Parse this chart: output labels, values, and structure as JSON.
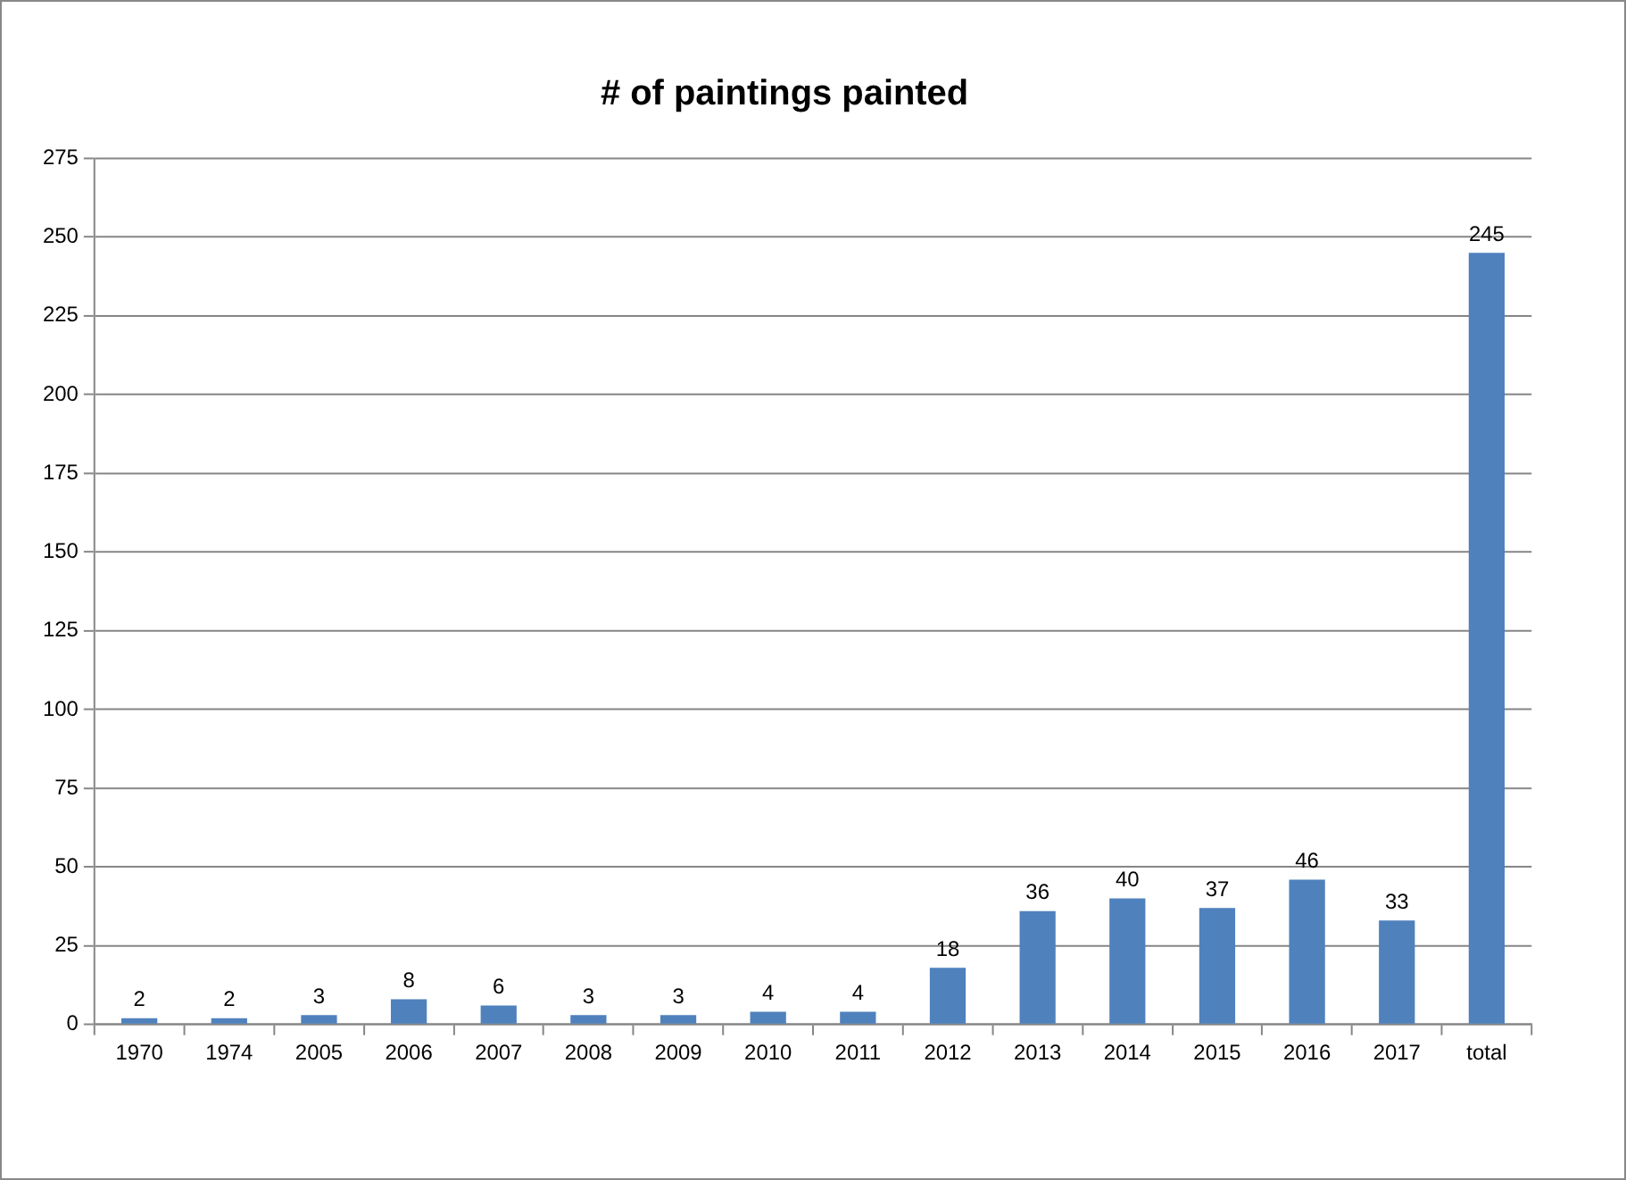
{
  "chart_data": {
    "type": "bar",
    "title": "# of paintings painted",
    "categories": [
      "1970",
      "1974",
      "2005",
      "2006",
      "2007",
      "2008",
      "2009",
      "2010",
      "2011",
      "2012",
      "2013",
      "2014",
      "2015",
      "2016",
      "2017",
      "total"
    ],
    "values": [
      2,
      2,
      3,
      8,
      6,
      3,
      3,
      4,
      4,
      18,
      36,
      40,
      37,
      46,
      33,
      245
    ],
    "color": "#4f81bd",
    "ylim": [
      0,
      275
    ],
    "yticks": [
      0,
      25,
      50,
      75,
      100,
      125,
      150,
      175,
      200,
      225,
      250,
      275
    ],
    "grid": "y",
    "data_labels": true,
    "legend": false
  }
}
